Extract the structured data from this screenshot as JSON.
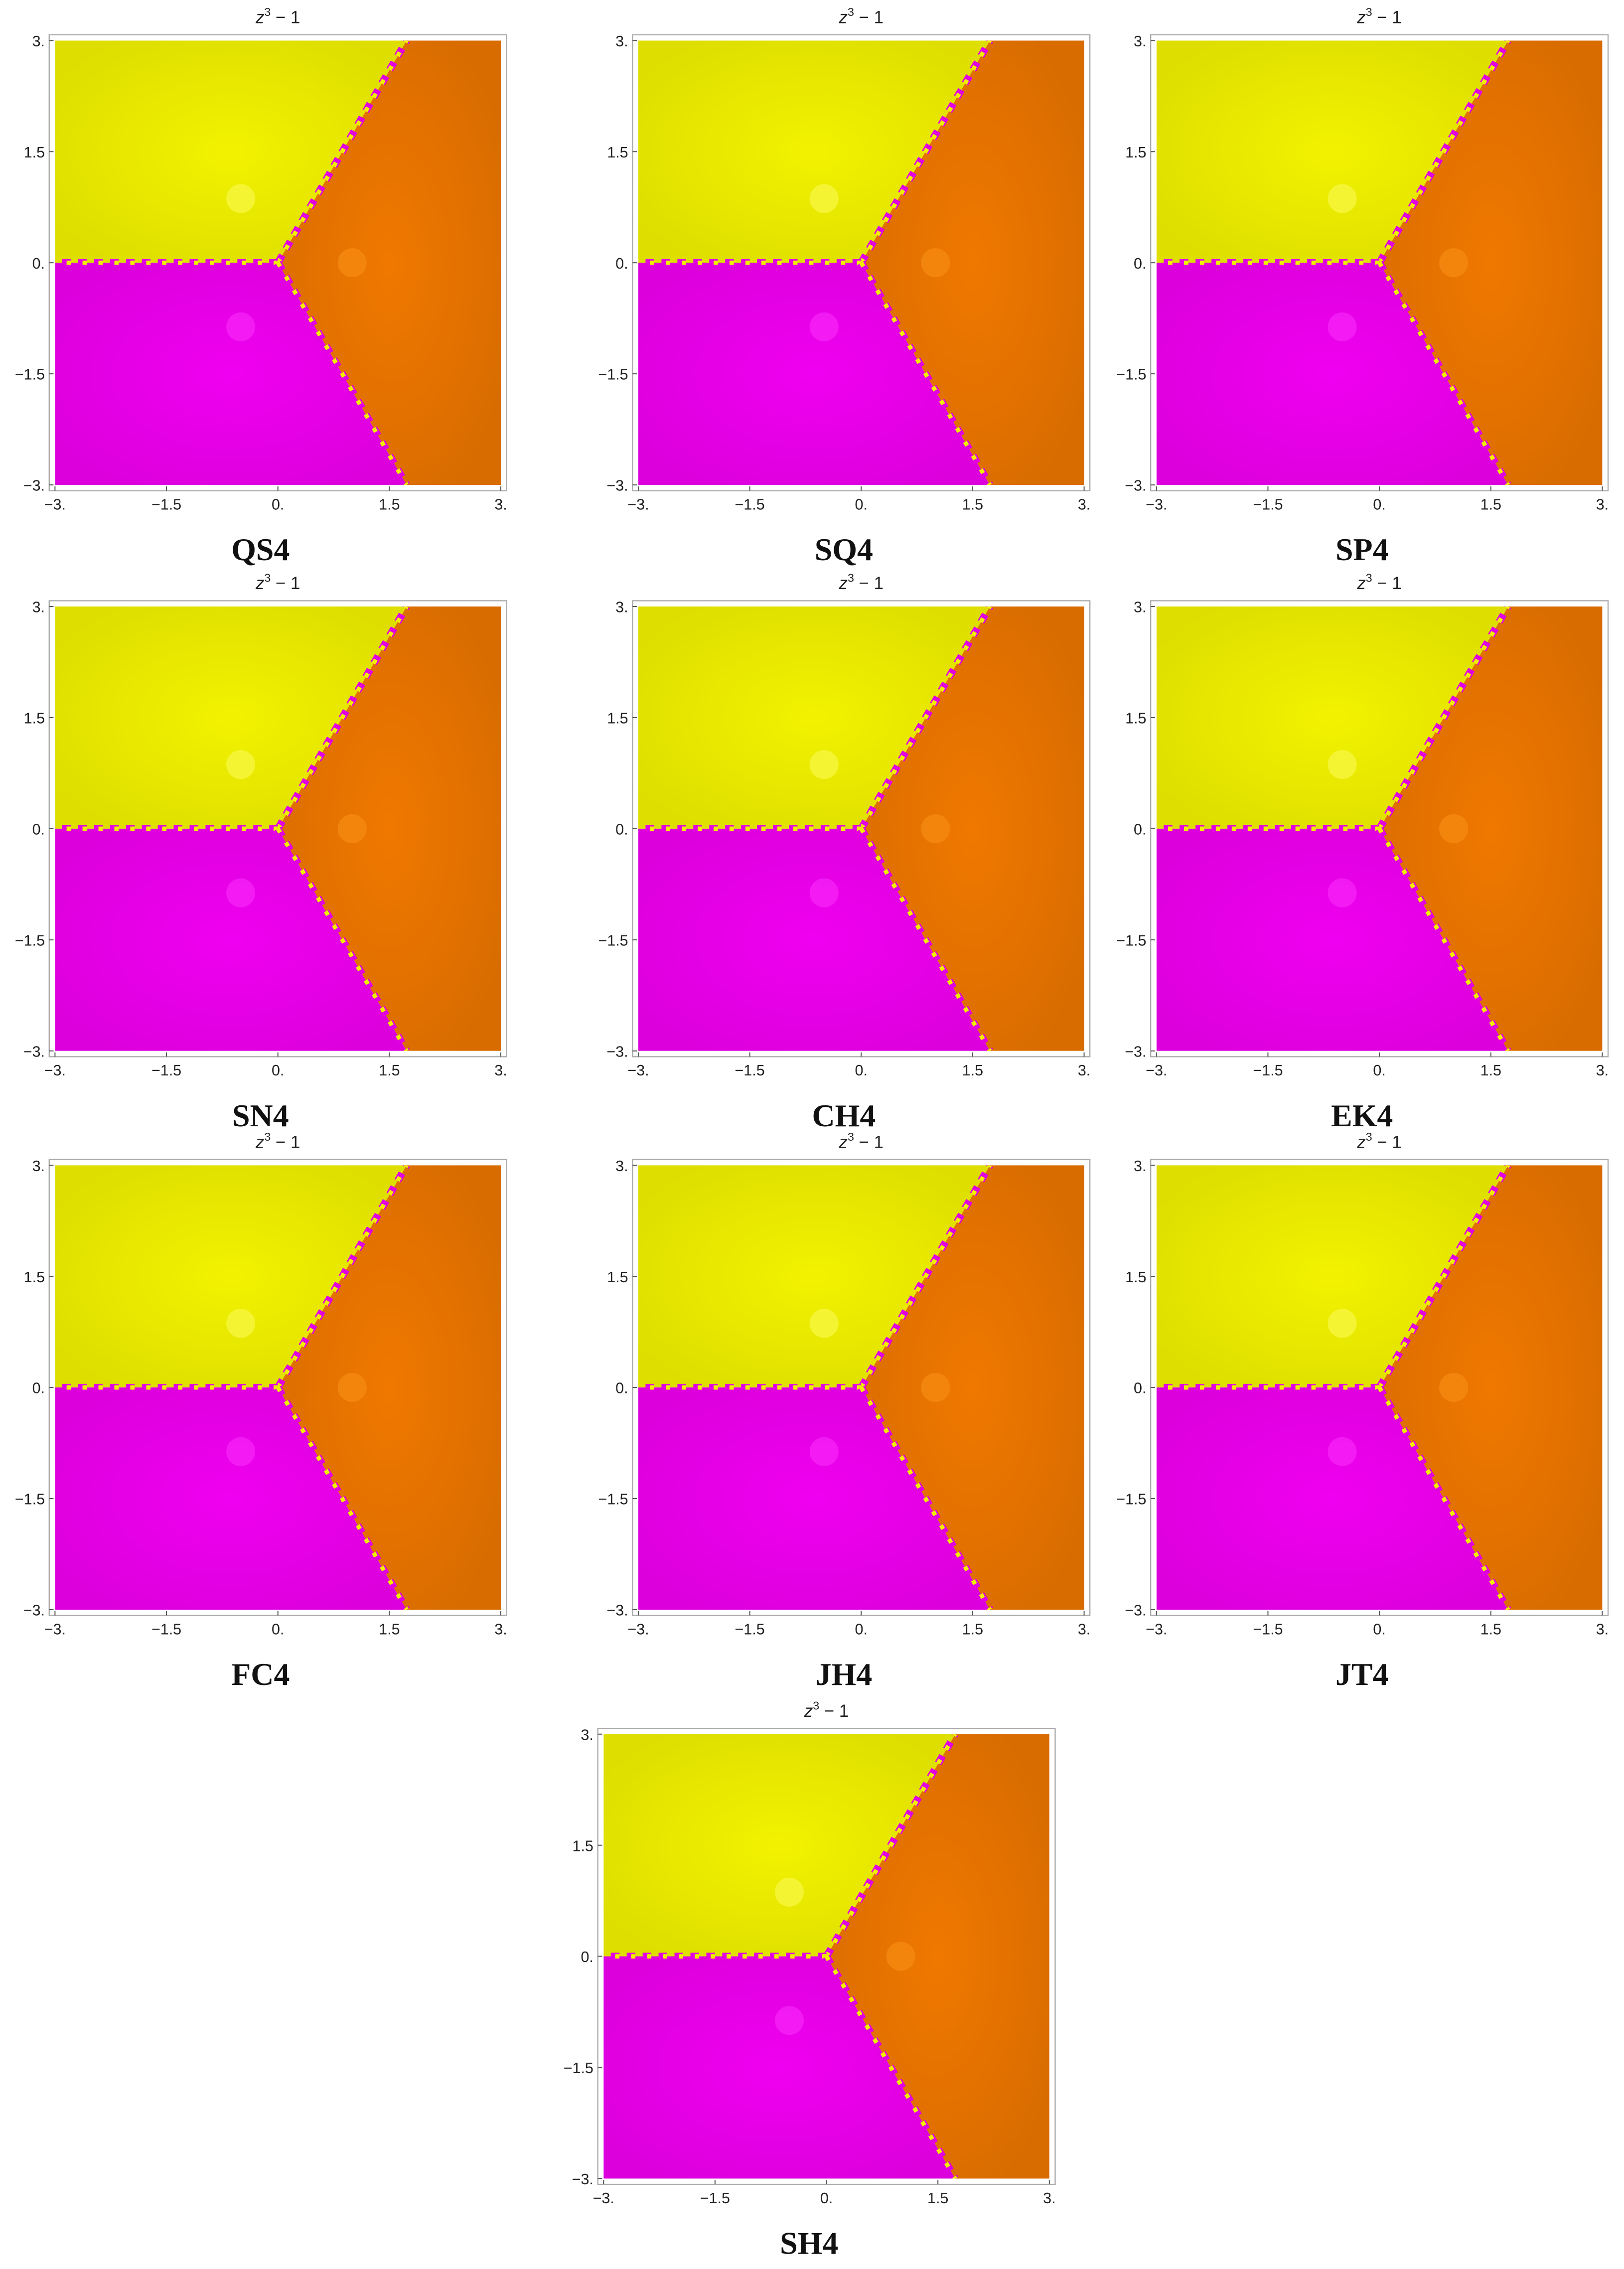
{
  "plot_title": {
    "base": "z",
    "exponent": "3",
    "rest": " − 1"
  },
  "xticks": [
    "−3.",
    "−1.5",
    "0.",
    "1.5",
    "3."
  ],
  "yticks": [
    "3.",
    "1.5",
    "0.",
    "−1.5",
    "−3."
  ],
  "panels": [
    {
      "label": "QS4"
    },
    {
      "label": "SQ4"
    },
    {
      "label": "SP4"
    },
    {
      "label": "SN4"
    },
    {
      "label": "CH4"
    },
    {
      "label": "EK4"
    },
    {
      "label": "FC4"
    },
    {
      "label": "JH4"
    },
    {
      "label": "JT4"
    },
    {
      "label": "SH4"
    }
  ]
}
